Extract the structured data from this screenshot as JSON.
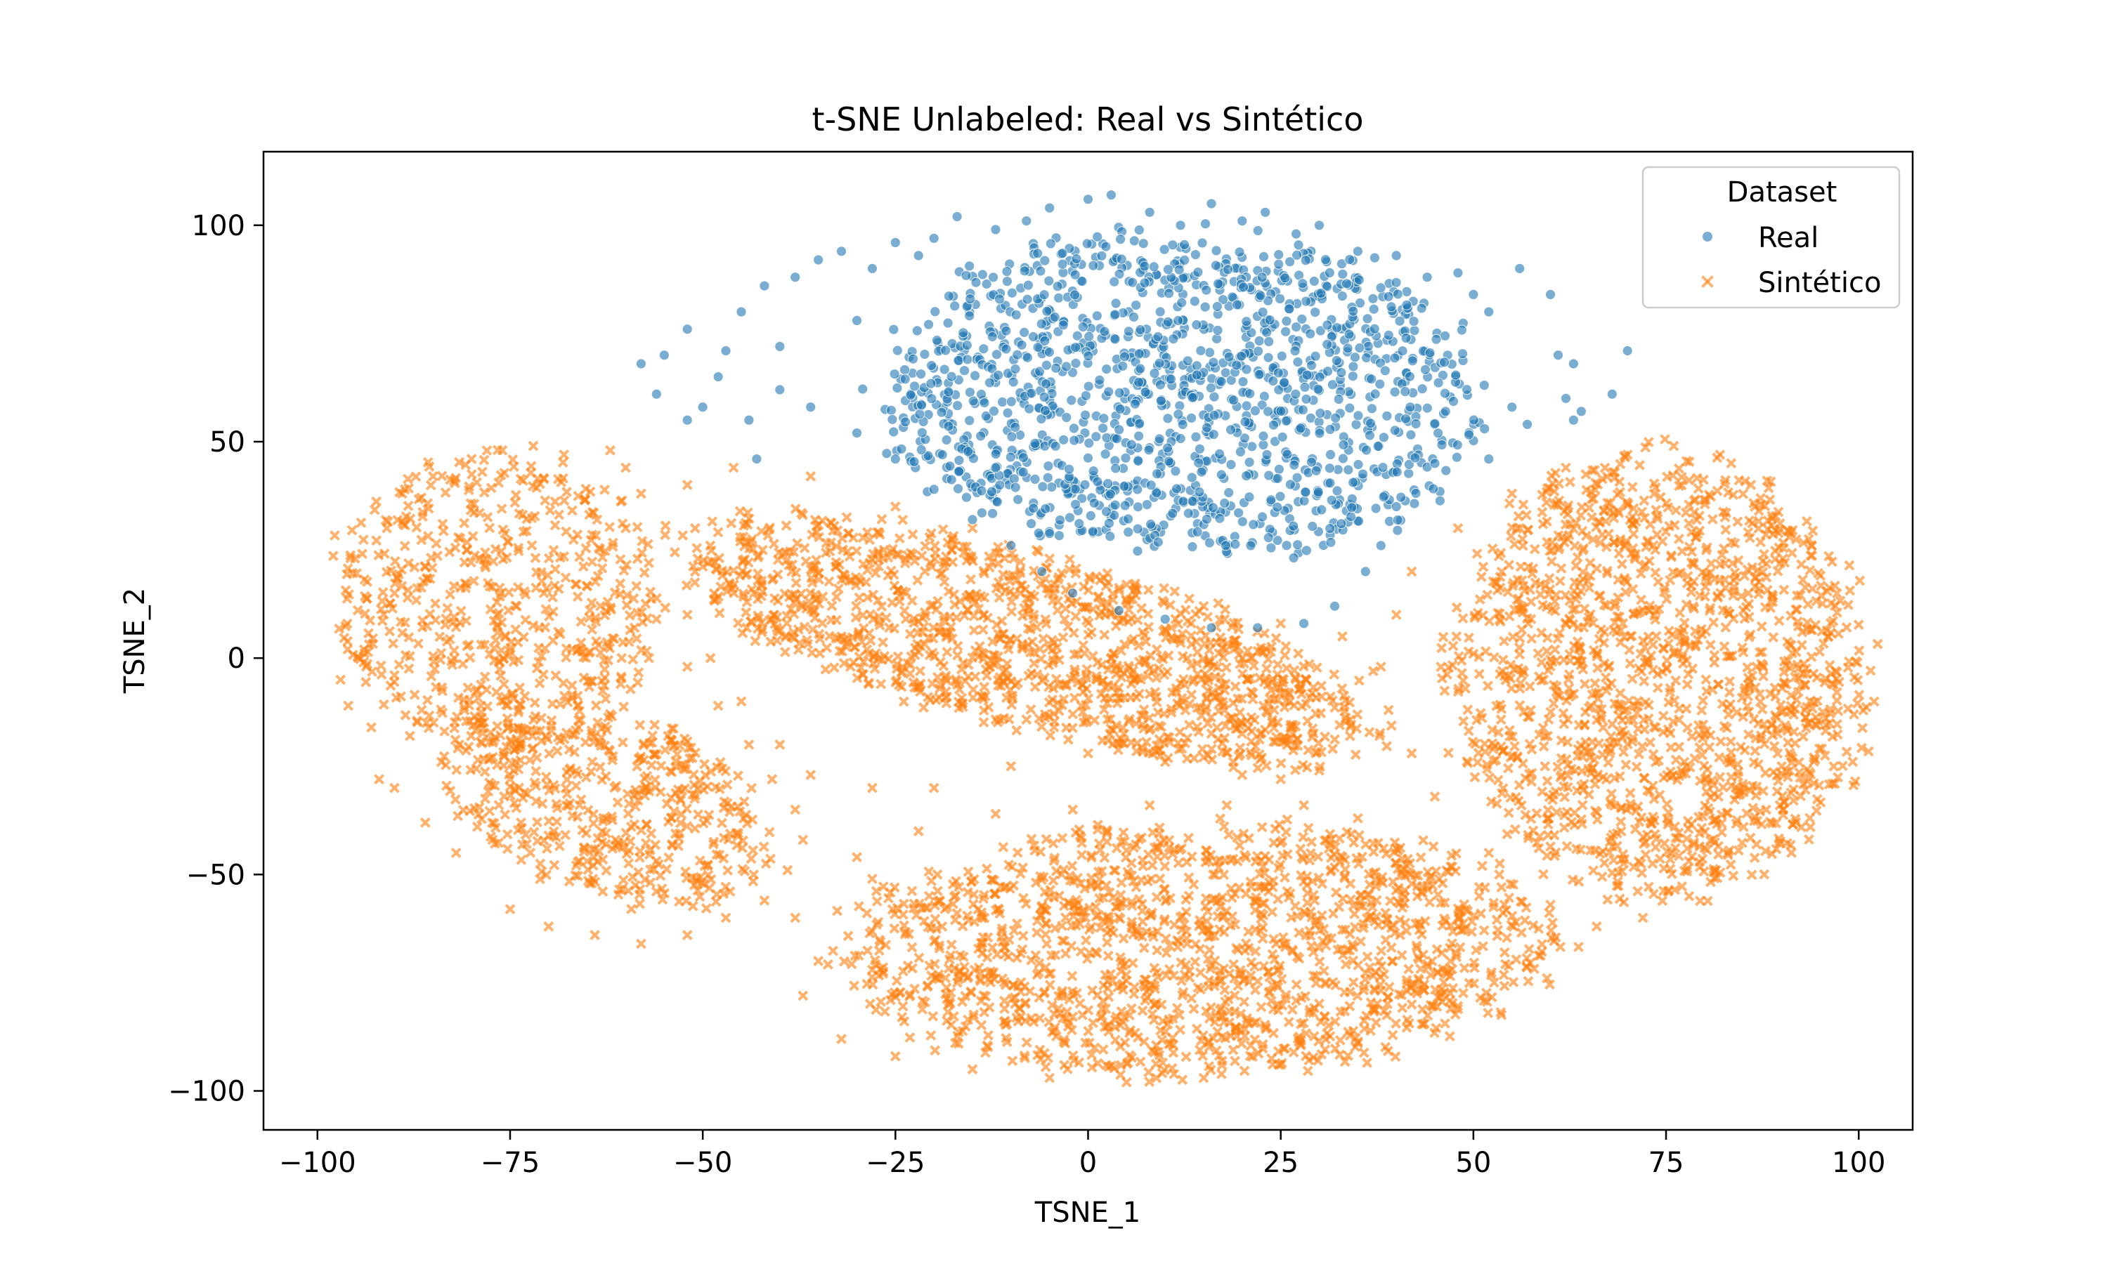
{
  "chart_data": {
    "type": "scatter",
    "title": "t-SNE Unlabeled: Real vs Sintético",
    "xlabel": "TSNE_1",
    "ylabel": "TSNE_2",
    "xlim": [
      -107,
      107
    ],
    "ylim": [
      -109,
      117
    ],
    "x_ticks": [
      -100,
      -75,
      -50,
      -25,
      0,
      25,
      50,
      75,
      100
    ],
    "x_tick_labels": [
      "−100",
      "−75",
      "−50",
      "−25",
      "0",
      "25",
      "50",
      "75",
      "100"
    ],
    "y_ticks": [
      -100,
      -50,
      0,
      50,
      100
    ],
    "y_tick_labels": [
      "−100",
      "−50",
      "0",
      "50",
      "100"
    ],
    "grid": false,
    "legend": {
      "title": "Dataset",
      "position": "top-right",
      "entries": [
        {
          "name": "Real",
          "marker": "circle",
          "color": "#1f77b4"
        },
        {
          "name": "Sintético",
          "marker": "x",
          "color": "#ff7f0e"
        }
      ]
    },
    "series": [
      {
        "name": "Real",
        "marker": "circle",
        "color": "#1f77b4",
        "clusters": [
          {
            "cx": 12,
            "cy": 62,
            "rx": 40,
            "ry": 38,
            "count": 1400
          }
        ],
        "points": [
          [
            -58,
            68
          ],
          [
            -55,
            70
          ],
          [
            -52,
            76
          ],
          [
            -50,
            58
          ],
          [
            -48,
            65
          ],
          [
            -47,
            71
          ],
          [
            -45,
            80
          ],
          [
            -44,
            55
          ],
          [
            -42,
            86
          ],
          [
            -40,
            72
          ],
          [
            -38,
            88
          ],
          [
            -35,
            92
          ],
          [
            -32,
            94
          ],
          [
            -30,
            78
          ],
          [
            -28,
            90
          ],
          [
            -25,
            96
          ],
          [
            -22,
            93
          ],
          [
            -20,
            97
          ],
          [
            -17,
            102
          ],
          [
            -12,
            99
          ],
          [
            -8,
            101
          ],
          [
            -5,
            104
          ],
          [
            0,
            106
          ],
          [
            3,
            107
          ],
          [
            8,
            103
          ],
          [
            12,
            100
          ],
          [
            16,
            105
          ],
          [
            20,
            101
          ],
          [
            23,
            103
          ],
          [
            27,
            98
          ],
          [
            30,
            100
          ],
          [
            35,
            94
          ],
          [
            40,
            93
          ],
          [
            44,
            88
          ],
          [
            48,
            89
          ],
          [
            50,
            84
          ],
          [
            52,
            80
          ],
          [
            56,
            90
          ],
          [
            60,
            84
          ],
          [
            61,
            70
          ],
          [
            63,
            68
          ],
          [
            63,
            55
          ],
          [
            64,
            57
          ],
          [
            68,
            61
          ],
          [
            70,
            71
          ],
          [
            57,
            54
          ],
          [
            55,
            58
          ],
          [
            45,
            45
          ],
          [
            40,
            35
          ],
          [
            38,
            26
          ],
          [
            36,
            20
          ],
          [
            32,
            12
          ],
          [
            28,
            8
          ],
          [
            22,
            7
          ],
          [
            16,
            7
          ],
          [
            10,
            9
          ],
          [
            4,
            11
          ],
          [
            -2,
            15
          ],
          [
            -6,
            20
          ],
          [
            -10,
            26
          ],
          [
            -15,
            32
          ],
          [
            -20,
            39
          ],
          [
            -25,
            46
          ],
          [
            -30,
            52
          ],
          [
            -36,
            58
          ],
          [
            -40,
            62
          ],
          [
            -52,
            55
          ],
          [
            -56,
            61
          ],
          [
            -43,
            46
          ],
          [
            -12,
            44
          ],
          [
            52,
            46
          ],
          [
            62,
            60
          ]
        ]
      },
      {
        "name": "Sintético",
        "marker": "x",
        "color": "#ff7f0e",
        "clusters": [
          {
            "cx": -77,
            "cy": 14,
            "rx": 22,
            "ry": 35,
            "rotate": 0,
            "count": 550
          },
          {
            "cx": -63,
            "cy": -33,
            "rx": 18,
            "ry": 29,
            "rotate": 35,
            "count": 480
          },
          {
            "cx": -8,
            "cy": 4,
            "rx": 52,
            "ry": 20,
            "rotate": -28,
            "count": 1250
          },
          {
            "cx": 74,
            "cy": -4,
            "rx": 28,
            "ry": 53,
            "rotate": 0,
            "count": 1450
          },
          {
            "cx": 14,
            "cy": -67,
            "rx": 48,
            "ry": 30,
            "rotate": 4,
            "count": 1450
          }
        ],
        "points": [
          [
            -97,
            -5
          ],
          [
            -96,
            -11
          ],
          [
            -94,
            -1
          ],
          [
            -93,
            -16
          ],
          [
            -92,
            -28
          ],
          [
            -91,
            30
          ],
          [
            -90,
            15
          ],
          [
            -89,
            38
          ],
          [
            -85,
            42
          ],
          [
            -80,
            46
          ],
          [
            -76,
            48
          ],
          [
            -72,
            49
          ],
          [
            -68,
            47
          ],
          [
            -62,
            48
          ],
          [
            -60,
            44
          ],
          [
            -58,
            38
          ],
          [
            -60,
            30
          ],
          [
            -57,
            22
          ],
          [
            -56,
            9
          ],
          [
            -57,
            0
          ],
          [
            -52,
            -2
          ],
          [
            -48,
            -11
          ],
          [
            -44,
            -20
          ],
          [
            -41,
            -28
          ],
          [
            -38,
            -35
          ],
          [
            -37,
            -42
          ],
          [
            -39,
            -49
          ],
          [
            -42,
            -56
          ],
          [
            -47,
            -60
          ],
          [
            -52,
            -64
          ],
          [
            -58,
            -66
          ],
          [
            -64,
            -64
          ],
          [
            -70,
            -62
          ],
          [
            -75,
            -58
          ],
          [
            -82,
            -45
          ],
          [
            -86,
            -38
          ],
          [
            -90,
            -30
          ],
          [
            -88,
            -18
          ],
          [
            -52,
            40
          ],
          [
            -46,
            44
          ],
          [
            -36,
            42
          ],
          [
            -25,
            35
          ],
          [
            -15,
            30
          ],
          [
            -5,
            23
          ],
          [
            5,
            17
          ],
          [
            15,
            12
          ],
          [
            25,
            8
          ],
          [
            33,
            5
          ],
          [
            37,
            -3
          ],
          [
            34,
            -18
          ],
          [
            30,
            -26
          ],
          [
            25,
            -28
          ],
          [
            20,
            -27
          ],
          [
            10,
            -24
          ],
          [
            0,
            -22
          ],
          [
            -10,
            -25
          ],
          [
            -20,
            -30
          ],
          [
            -28,
            -30
          ],
          [
            -36,
            -27
          ],
          [
            -40,
            -20
          ],
          [
            -45,
            -10
          ],
          [
            -49,
            0
          ],
          [
            -52,
            10
          ],
          [
            -51,
            20
          ],
          [
            -51,
            30
          ],
          [
            -38,
            -60
          ],
          [
            -35,
            -70
          ],
          [
            -37,
            -78
          ],
          [
            -32,
            -88
          ],
          [
            -25,
            -92
          ],
          [
            -15,
            -95
          ],
          [
            -5,
            -97
          ],
          [
            5,
            -98
          ],
          [
            15,
            -97
          ],
          [
            25,
            -94
          ],
          [
            35,
            -89
          ],
          [
            42,
            -80
          ],
          [
            47,
            -70
          ],
          [
            48,
            -62
          ],
          [
            46,
            -52
          ],
          [
            40,
            -44
          ],
          [
            35,
            -37
          ],
          [
            28,
            -34
          ],
          [
            18,
            -34
          ],
          [
            8,
            -34
          ],
          [
            -2,
            -35
          ],
          [
            -12,
            -36
          ],
          [
            -22,
            -40
          ],
          [
            -30,
            -46
          ],
          [
            -28,
            -51
          ],
          [
            38,
            -2
          ],
          [
            40,
            10
          ],
          [
            42,
            20
          ],
          [
            48,
            30
          ],
          [
            55,
            38
          ],
          [
            62,
            44
          ],
          [
            70,
            47
          ],
          [
            76,
            49
          ],
          [
            82,
            47
          ],
          [
            86,
            40
          ],
          [
            91,
            28
          ],
          [
            94,
            16
          ],
          [
            96,
            5
          ],
          [
            97,
            -3
          ],
          [
            93,
            -12
          ],
          [
            90,
            -25
          ],
          [
            88,
            -35
          ],
          [
            83,
            -45
          ],
          [
            78,
            -55
          ],
          [
            72,
            -60
          ],
          [
            66,
            -62
          ],
          [
            60,
            -57
          ],
          [
            52,
            -45
          ],
          [
            45,
            -32
          ],
          [
            42,
            -22
          ],
          [
            39,
            -12
          ]
        ]
      }
    ]
  }
}
